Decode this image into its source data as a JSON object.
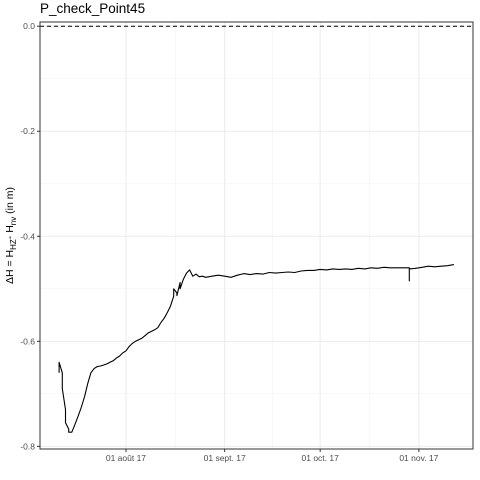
{
  "chart_data": {
    "type": "line",
    "title": "P_check_Point45",
    "ylabel": {
      "prefix": "ΔH = H",
      "sub1": "HZ",
      "mid": "- H",
      "sub2": "nv",
      "suffix": " (in m)"
    },
    "xlabel": "",
    "x_axis_type": "date",
    "xlim": [
      "2017-07-05",
      "2017-11-18"
    ],
    "ylim": [
      -0.805,
      0.008
    ],
    "x_ticks": [
      {
        "date": "2017-08-01",
        "label": "01 août 17"
      },
      {
        "date": "2017-09-01",
        "label": "01 sept. 17"
      },
      {
        "date": "2017-10-01",
        "label": "01 oct. 17"
      },
      {
        "date": "2017-11-01",
        "label": "01 nov. 17"
      }
    ],
    "y_ticks": [
      {
        "value": 0.0,
        "label": "0.0"
      },
      {
        "value": -0.2,
        "label": "-0.2"
      },
      {
        "value": -0.4,
        "label": "-0.4"
      },
      {
        "value": -0.6,
        "label": "-0.6"
      },
      {
        "value": -0.8,
        "label": "-0.8"
      }
    ],
    "reference_line": {
      "y": 0.0,
      "style": "dashed"
    },
    "grid": true,
    "theme": "bw",
    "series": [
      {
        "line_color": "#000000",
        "points": [
          [
            "2017-07-11",
            -0.66
          ],
          [
            "2017-07-11",
            -0.64
          ],
          [
            "2017-07-12",
            -0.66
          ],
          [
            "2017-07-12",
            -0.68
          ],
          [
            "2017-07-12",
            -0.69
          ],
          [
            "2017-07-13",
            -0.73
          ],
          [
            "2017-07-13",
            -0.755
          ],
          [
            "2017-07-14",
            -0.767
          ],
          [
            "2017-07-14",
            -0.773
          ],
          [
            "2017-07-15",
            -0.773
          ],
          [
            "2017-07-16",
            -0.758
          ],
          [
            "2017-07-17",
            -0.742
          ],
          [
            "2017-07-18",
            -0.725
          ],
          [
            "2017-07-19",
            -0.705
          ],
          [
            "2017-07-20",
            -0.68
          ],
          [
            "2017-07-21",
            -0.66
          ],
          [
            "2017-07-22",
            -0.652
          ],
          [
            "2017-07-23",
            -0.648
          ],
          [
            "2017-07-24",
            -0.647
          ],
          [
            "2017-07-25",
            -0.645
          ],
          [
            "2017-07-26",
            -0.643
          ],
          [
            "2017-07-27",
            -0.64
          ],
          [
            "2017-07-28",
            -0.637
          ],
          [
            "2017-07-29",
            -0.632
          ],
          [
            "2017-07-30",
            -0.628
          ],
          [
            "2017-07-31",
            -0.622
          ],
          [
            "2017-08-01",
            -0.618
          ],
          [
            "2017-08-02",
            -0.61
          ],
          [
            "2017-08-03",
            -0.604
          ],
          [
            "2017-08-04",
            -0.6
          ],
          [
            "2017-08-05",
            -0.597
          ],
          [
            "2017-08-06",
            -0.594
          ],
          [
            "2017-08-07",
            -0.589
          ],
          [
            "2017-08-08",
            -0.584
          ],
          [
            "2017-08-09",
            -0.581
          ],
          [
            "2017-08-10",
            -0.578
          ],
          [
            "2017-08-11",
            -0.574
          ],
          [
            "2017-08-12",
            -0.564
          ],
          [
            "2017-08-13",
            -0.556
          ],
          [
            "2017-08-14",
            -0.545
          ],
          [
            "2017-08-15",
            -0.533
          ],
          [
            "2017-08-16",
            -0.514
          ],
          [
            "2017-08-16",
            -0.5
          ],
          [
            "2017-08-17",
            -0.508
          ],
          [
            "2017-08-17",
            -0.513
          ],
          [
            "2017-08-18",
            -0.488
          ],
          [
            "2017-08-18",
            -0.5
          ],
          [
            "2017-08-19",
            -0.482
          ],
          [
            "2017-08-20",
            -0.47
          ],
          [
            "2017-08-21",
            -0.464
          ],
          [
            "2017-08-22",
            -0.476
          ],
          [
            "2017-08-23",
            -0.472
          ],
          [
            "2017-08-24",
            -0.477
          ],
          [
            "2017-08-25",
            -0.476
          ],
          [
            "2017-08-26",
            -0.478
          ],
          [
            "2017-08-28",
            -0.476
          ],
          [
            "2017-08-30",
            -0.474
          ],
          [
            "2017-09-01",
            -0.476
          ],
          [
            "2017-09-03",
            -0.478
          ],
          [
            "2017-09-05",
            -0.474
          ],
          [
            "2017-09-07",
            -0.471
          ],
          [
            "2017-09-09",
            -0.473
          ],
          [
            "2017-09-11",
            -0.471
          ],
          [
            "2017-09-13",
            -0.472
          ],
          [
            "2017-09-15",
            -0.469
          ],
          [
            "2017-09-17",
            -0.47
          ],
          [
            "2017-09-19",
            -0.469
          ],
          [
            "2017-09-21",
            -0.468
          ],
          [
            "2017-09-23",
            -0.469
          ],
          [
            "2017-09-25",
            -0.466
          ],
          [
            "2017-09-27",
            -0.465
          ],
          [
            "2017-09-29",
            -0.465
          ],
          [
            "2017-10-01",
            -0.463
          ],
          [
            "2017-10-03",
            -0.464
          ],
          [
            "2017-10-05",
            -0.462
          ],
          [
            "2017-10-07",
            -0.463
          ],
          [
            "2017-10-09",
            -0.462
          ],
          [
            "2017-10-11",
            -0.463
          ],
          [
            "2017-10-13",
            -0.461
          ],
          [
            "2017-10-15",
            -0.462
          ],
          [
            "2017-10-17",
            -0.46
          ],
          [
            "2017-10-19",
            -0.461
          ],
          [
            "2017-10-21",
            -0.459
          ],
          [
            "2017-10-23",
            -0.46
          ],
          [
            "2017-10-25",
            -0.46
          ],
          [
            "2017-10-27",
            -0.46
          ],
          [
            "2017-10-29",
            -0.46
          ],
          [
            "2017-10-29",
            -0.485
          ],
          [
            "2017-10-29",
            -0.462
          ],
          [
            "2017-10-31",
            -0.461
          ],
          [
            "2017-11-02",
            -0.459
          ],
          [
            "2017-11-04",
            -0.457
          ],
          [
            "2017-11-06",
            -0.458
          ],
          [
            "2017-11-08",
            -0.457
          ],
          [
            "2017-11-10",
            -0.456
          ],
          [
            "2017-11-12",
            -0.454
          ]
        ]
      }
    ]
  }
}
